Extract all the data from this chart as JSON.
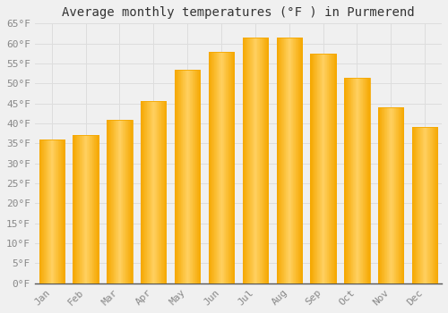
{
  "title": "Average monthly temperatures (°F ) in Purmerend",
  "months": [
    "Jan",
    "Feb",
    "Mar",
    "Apr",
    "May",
    "Jun",
    "Jul",
    "Aug",
    "Sep",
    "Oct",
    "Nov",
    "Dec"
  ],
  "values": [
    36,
    37,
    41,
    45.5,
    53.5,
    58,
    61.5,
    61.5,
    57.5,
    51.5,
    44,
    39
  ],
  "bar_color_center": "#FFD060",
  "bar_color_edge": "#F5A800",
  "background_color": "#F0F0F0",
  "plot_bg_color": "#F0F0F0",
  "grid_color": "#DDDDDD",
  "ylim": [
    0,
    65
  ],
  "yticks": [
    0,
    5,
    10,
    15,
    20,
    25,
    30,
    35,
    40,
    45,
    50,
    55,
    60,
    65
  ],
  "title_fontsize": 10,
  "tick_fontsize": 8,
  "tick_font_color": "#888888",
  "bar_width": 0.75
}
